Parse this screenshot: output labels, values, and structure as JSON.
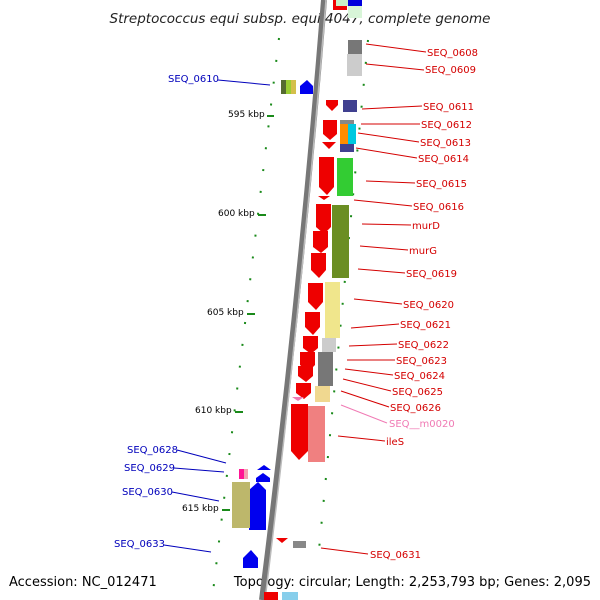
{
  "map": {
    "title": "Streptococcus equi subsp. equi 4047, complete genome",
    "accession": "Accession: NC_012471",
    "summary": "Topology: circular; Length: 2,253,793 bp; Genes: 2,095"
  },
  "positions": [
    "595 kbp",
    "600 kbp",
    "605 kbp",
    "610 kbp",
    "615 kbp"
  ],
  "genes_right": [
    "SEQ_0608",
    "SEQ_0609",
    "SEQ_0611",
    "SEQ_0612",
    "SEQ_0613",
    "SEQ_0614",
    "SEQ_0615",
    "SEQ_0616",
    "murD",
    "murG",
    "SEQ_0619",
    "SEQ_0620",
    "SEQ_0621",
    "SEQ_0622",
    "SEQ_0623",
    "SEQ_0624",
    "SEQ_0625",
    "SEQ_0626",
    "SEQ__m0020",
    "ileS",
    "SEQ_0631"
  ],
  "genes_left": [
    "SEQ_0610",
    "SEQ_0628",
    "SEQ_0629",
    "SEQ_0630",
    "SEQ_0633"
  ],
  "colors": {
    "forward_strand": "#ee0000",
    "reverse_strand": "#0000ee",
    "backbone": "#808080",
    "tick": "#1a8a1a",
    "label_right": "#d40000",
    "label_left": "#0000bb",
    "label_rna": "#f07ab4"
  }
}
